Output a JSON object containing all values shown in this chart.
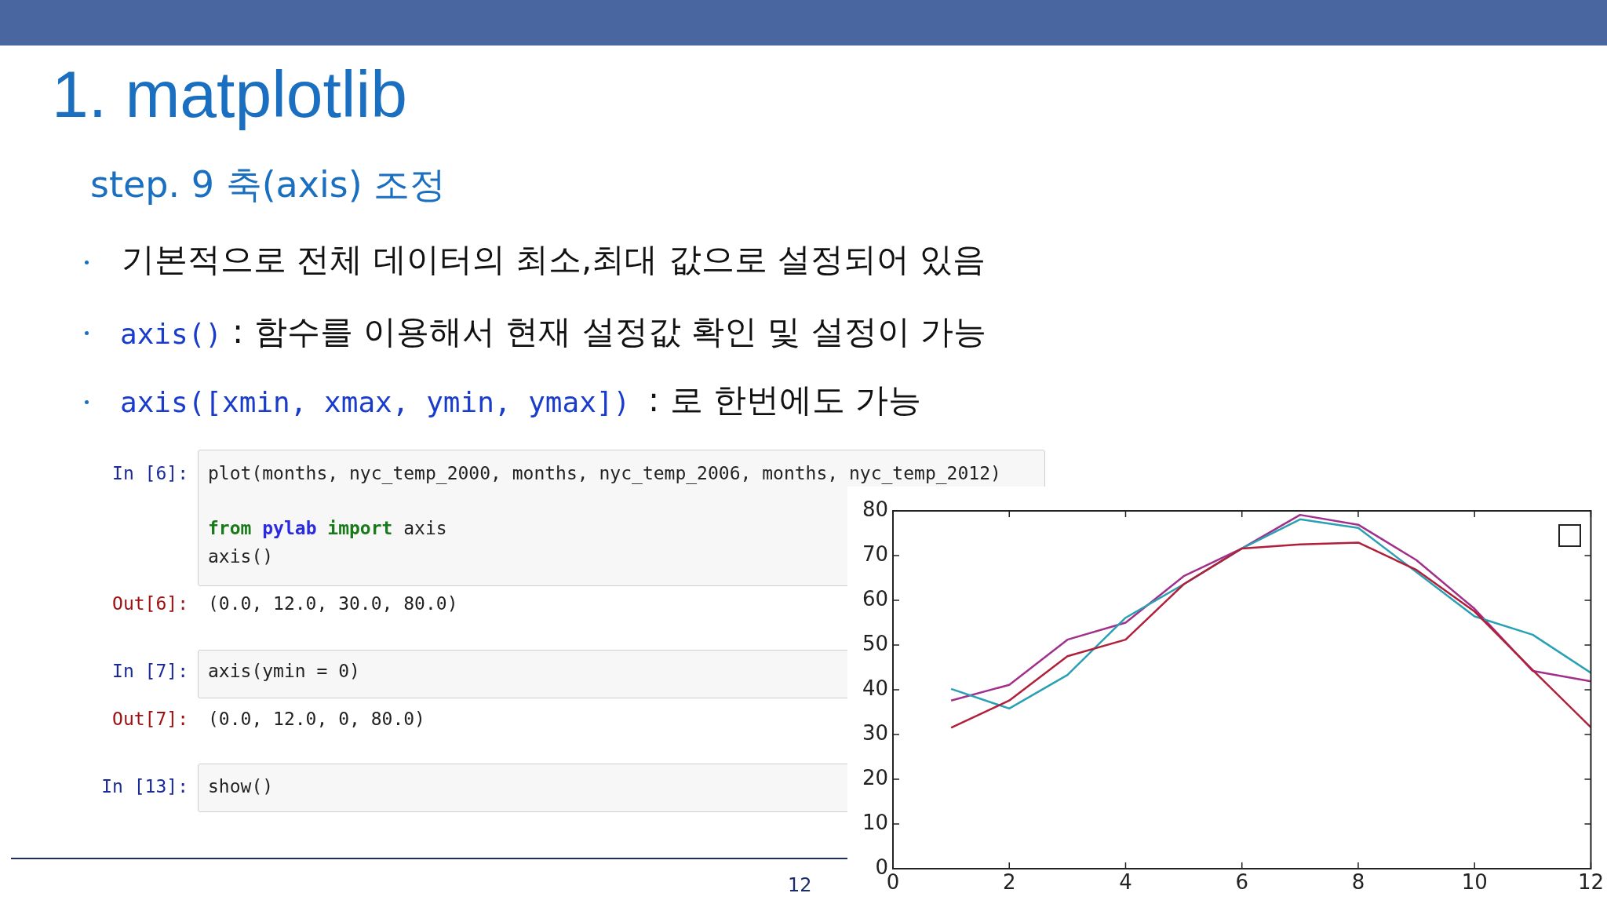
{
  "chart_data": {
    "type": "line",
    "title": "1. matplotlib",
    "subtitle": "step. 9 축(axis) 조정",
    "annotations": [
      "기본적으로 전체 데이터의 최소,최대 값으로 설정되어 있음",
      "axis()",
      ": 함수를 이용해서 현재 설정값 확인 및 설정이 가능",
      "axis([xmin, xmax, ymin, ymax])",
      ": 로 한번에도 가능",
      "In [6]:",
      "plot(months, nyc_temp_2000, months, nyc_temp_2006, months, nyc_temp_2012)",
      "from pylab import axis",
      "axis()",
      "Out[6]:",
      "(0.0, 12.0, 30.0, 80.0)",
      "In [7]:",
      "axis(ymin = 0)",
      "Out[7]:",
      "(0.0, 12.0, 0, 80.0)",
      "In [13]:",
      "show()",
      "12"
    ],
    "x": [
      1,
      2,
      3,
      4,
      5,
      6,
      7,
      8,
      9,
      10,
      11,
      12
    ],
    "series": [
      {
        "color": "#b0203a",
        "values": [
          31.5,
          37.6,
          47.5,
          51.2,
          63.6,
          71.6,
          72.5,
          72.9,
          66.8,
          57.5,
          44.4,
          31.6
        ]
      },
      {
        "color": "#2aa0b4",
        "values": [
          40.2,
          35.8,
          43.3,
          56.1,
          63.6,
          71.6,
          78.1,
          76.2,
          66.3,
          56.4,
          52.3,
          43.8
        ]
      },
      {
        "color": "#a0308c",
        "values": [
          37.6,
          41.1,
          51.2,
          55.0,
          65.4,
          71.6,
          79.1,
          76.9,
          69.0,
          58.1,
          44.2,
          41.9
        ]
      }
    ],
    "xlim": [
      0,
      12
    ],
    "xticks": [
      0,
      2,
      4,
      6,
      8,
      10,
      12
    ],
    "ylim": [
      0,
      80
    ],
    "yticks": [
      0,
      10,
      20,
      30,
      40,
      50,
      60,
      70,
      80
    ],
    "grid": false,
    "legend": false,
    "marker": "none",
    "line_style": "solid"
  }
}
